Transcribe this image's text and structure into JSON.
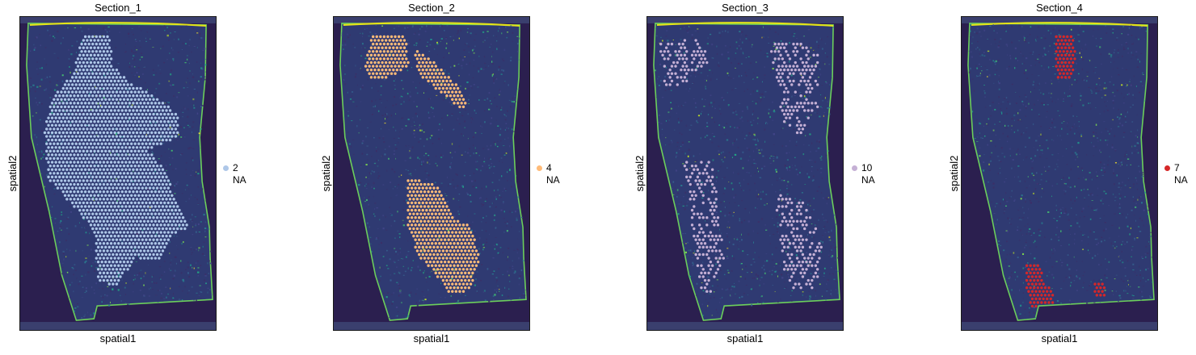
{
  "chart_data": [
    {
      "type": "scatter",
      "title": "Section_1",
      "xlabel": "spatial1",
      "ylabel": "spatial2",
      "legend": [
        {
          "label": "2",
          "color": "#aec7e8"
        },
        {
          "label": "NA",
          "color": ""
        }
      ],
      "legend_placement": "right",
      "highlighted_cluster": "2",
      "highlight_regions": [
        "central-diagonal-band"
      ],
      "grid": false,
      "background": "tissue-image-viridis"
    },
    {
      "type": "scatter",
      "title": "Section_2",
      "xlabel": "spatial1",
      "ylabel": "spatial2",
      "legend": [
        {
          "label": "4",
          "color": "#ffbb78"
        },
        {
          "label": "NA",
          "color": ""
        }
      ],
      "legend_placement": "right",
      "highlighted_cluster": "4",
      "highlight_regions": [
        "upper-left-strip",
        "lower-center-block"
      ],
      "grid": false,
      "background": "tissue-image-viridis"
    },
    {
      "type": "scatter",
      "title": "Section_3",
      "xlabel": "spatial1",
      "ylabel": "spatial2",
      "legend": [
        {
          "label": "10",
          "color": "#c5b0d5"
        },
        {
          "label": "NA",
          "color": ""
        }
      ],
      "legend_placement": "right",
      "highlighted_cluster": "10",
      "highlight_regions": [
        "upper-left-sparse",
        "upper-right-sparse",
        "lower-left-sparse",
        "lower-right-sparse"
      ],
      "grid": false,
      "background": "tissue-image-viridis"
    },
    {
      "type": "scatter",
      "title": "Section_4",
      "xlabel": "spatial1",
      "ylabel": "spatial2",
      "legend": [
        {
          "label": "7",
          "color": "#d62728"
        },
        {
          "label": "NA",
          "color": ""
        }
      ],
      "legend_placement": "right",
      "highlighted_cluster": "7",
      "highlight_regions": [
        "top-center-cluster",
        "bottom-left-cluster",
        "bottom-right-small"
      ],
      "grid": false,
      "background": "tissue-image-viridis"
    }
  ]
}
